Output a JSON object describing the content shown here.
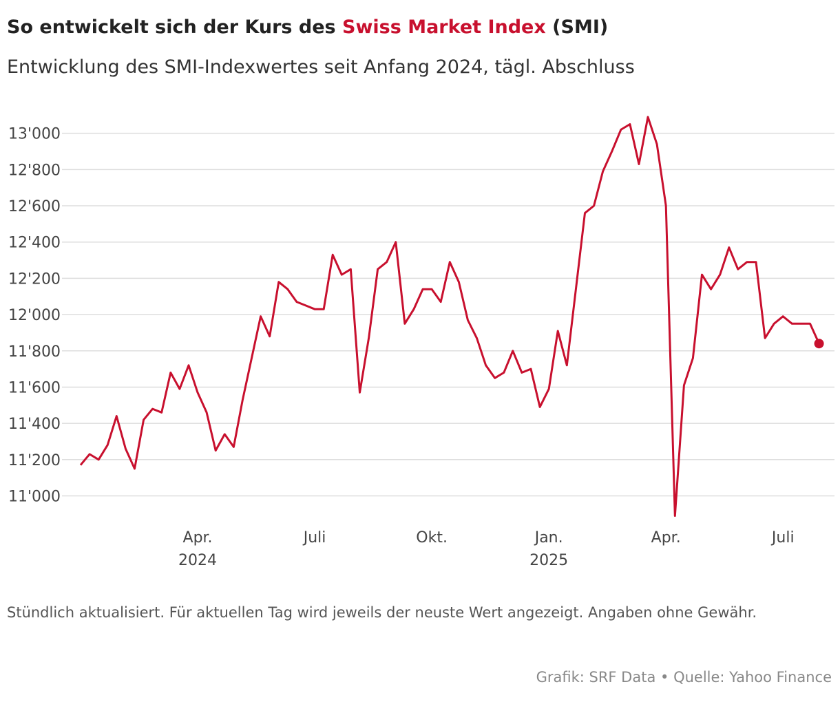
{
  "chart_data": {
    "type": "line",
    "title": [
      {
        "text": "So entwickelt sich der Kurs des "
      },
      {
        "text": "Swiss Market Index",
        "color": "#c8102e"
      },
      {
        "text": " (SMI)"
      }
    ],
    "subtitle": "Entwicklung des SMI-Indexwertes seit Anfang 2024, tägl. Abschluss",
    "note": "Stündlich aktualisiert. Für aktuellen Tag wird jeweils der neuste Wert angezeigt. Angaben ohne Gewähr.",
    "source": "Grafik: SRF Data • Quelle: Yahoo Finance",
    "categories": [
      null,
      null,
      null,
      null,
      null,
      null,
      null,
      null,
      null,
      null,
      null,
      null,
      null,
      "Apr. 2024",
      null,
      null,
      null,
      null,
      null,
      null,
      null,
      null,
      null,
      null,
      null,
      null,
      "Juli",
      null,
      null,
      null,
      null,
      null,
      null,
      null,
      null,
      null,
      null,
      null,
      null,
      "Okt.",
      null,
      null,
      null,
      null,
      null,
      null,
      null,
      null,
      null,
      null,
      null,
      null,
      "Jan. 2025",
      null,
      null,
      null,
      null,
      null,
      null,
      null,
      null,
      null,
      null,
      null,
      null,
      "Apr.",
      null,
      null,
      null,
      null,
      null,
      null,
      null,
      null,
      null,
      null,
      null,
      null,
      "Juli",
      null,
      null,
      null,
      null
    ],
    "series": [
      {
        "color": "#c8102e",
        "values": [
          11170,
          11230,
          11200,
          11280,
          11440,
          11260,
          11150,
          11420,
          11480,
          11460,
          11680,
          11590,
          11720,
          11570,
          11460,
          11250,
          11340,
          11270,
          11530,
          11760,
          11990,
          11880,
          12180,
          12140,
          12070,
          12050,
          12030,
          12030,
          12330,
          12220,
          12250,
          11570,
          11870,
          12250,
          12290,
          12400,
          11950,
          12030,
          12140,
          12140,
          12070,
          12290,
          12180,
          11970,
          11870,
          11720,
          11650,
          11680,
          11800,
          11680,
          11700,
          11490,
          11590,
          11910,
          11720,
          12140,
          12560,
          12600,
          12790,
          12900,
          13020,
          13050,
          12830,
          13090,
          12940,
          12600,
          10890,
          11610,
          11760,
          12220,
          12140,
          12220,
          12370,
          12250,
          12290,
          12290,
          11870,
          11950,
          11990,
          11950,
          11950,
          11950,
          11840
        ]
      }
    ],
    "ylim": [
      10850,
      13200
    ],
    "yticks": [
      {
        "value": 11000,
        "label": "11'000"
      },
      {
        "value": 11200,
        "label": "11'200"
      },
      {
        "value": 11400,
        "label": "11'400"
      },
      {
        "value": 11600,
        "label": "11'600"
      },
      {
        "value": 11800,
        "label": "11'800"
      },
      {
        "value": 12000,
        "label": "12'000"
      },
      {
        "value": 12200,
        "label": "12'200"
      },
      {
        "value": 12400,
        "label": "12'400"
      },
      {
        "value": 12600,
        "label": "12'600"
      },
      {
        "value": 12800,
        "label": "12'800"
      },
      {
        "value": 13000,
        "label": "13'000"
      }
    ],
    "grid": true,
    "end_marker": true
  }
}
